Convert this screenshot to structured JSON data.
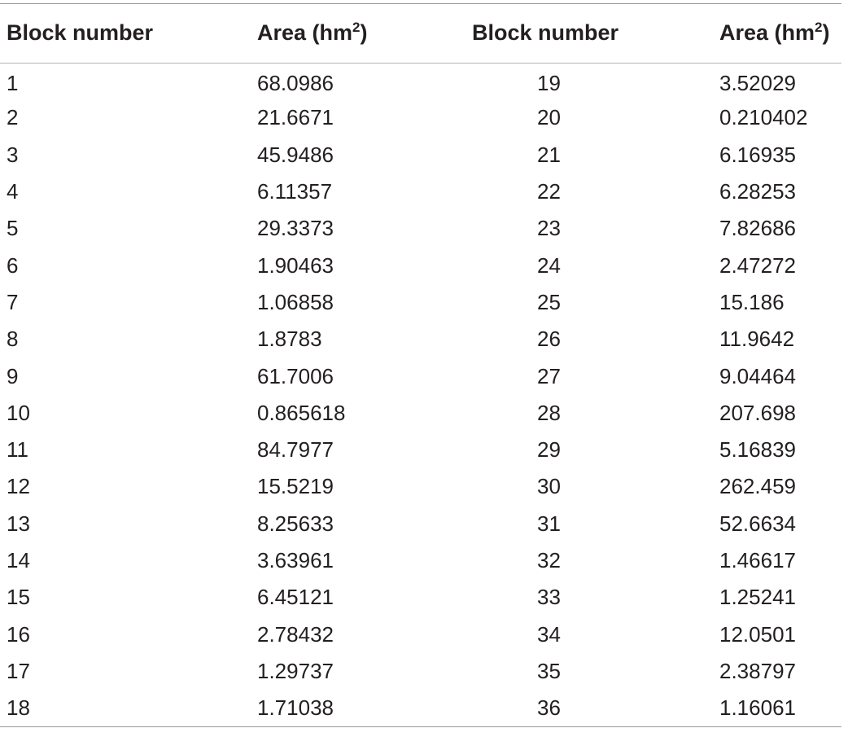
{
  "headers": {
    "block_number_1": "Block number",
    "area_1_prefix": "Area (hm",
    "area_1_sup": "2",
    "area_1_suffix": ")",
    "block_number_2": "Block number",
    "area_2_prefix": "Area (hm",
    "area_2_sup": "2",
    "area_2_suffix": ")"
  },
  "rows": [
    {
      "block_a": "1",
      "area_a": "68.0986",
      "block_b": "19",
      "area_b": "3.52029"
    },
    {
      "block_a": "2",
      "area_a": "21.6671",
      "block_b": "20",
      "area_b": "0.210402"
    },
    {
      "block_a": "3",
      "area_a": "45.9486",
      "block_b": "21",
      "area_b": "6.16935"
    },
    {
      "block_a": "4",
      "area_a": "6.11357",
      "block_b": "22",
      "area_b": "6.28253"
    },
    {
      "block_a": "5",
      "area_a": "29.3373",
      "block_b": "23",
      "area_b": "7.82686"
    },
    {
      "block_a": "6",
      "area_a": "1.90463",
      "block_b": "24",
      "area_b": "2.47272"
    },
    {
      "block_a": "7",
      "area_a": "1.06858",
      "block_b": "25",
      "area_b": "15.186"
    },
    {
      "block_a": "8",
      "area_a": "1.8783",
      "block_b": "26",
      "area_b": "11.9642"
    },
    {
      "block_a": "9",
      "area_a": "61.7006",
      "block_b": "27",
      "area_b": "9.04464"
    },
    {
      "block_a": "10",
      "area_a": "0.865618",
      "block_b": "28",
      "area_b": "207.698"
    },
    {
      "block_a": "11",
      "area_a": "84.7977",
      "block_b": "29",
      "area_b": "5.16839"
    },
    {
      "block_a": "12",
      "area_a": "15.5219",
      "block_b": "30",
      "area_b": "262.459"
    },
    {
      "block_a": "13",
      "area_a": "8.25633",
      "block_b": "31",
      "area_b": "52.6634"
    },
    {
      "block_a": "14",
      "area_a": "3.63961",
      "block_b": "32",
      "area_b": "1.46617"
    },
    {
      "block_a": "15",
      "area_a": "6.45121",
      "block_b": "33",
      "area_b": "1.25241"
    },
    {
      "block_a": "16",
      "area_a": "2.78432",
      "block_b": "34",
      "area_b": "12.0501"
    },
    {
      "block_a": "17",
      "area_a": "1.29737",
      "block_b": "35",
      "area_b": "2.38797"
    },
    {
      "block_a": "18",
      "area_a": "1.71038",
      "block_b": "36",
      "area_b": "1.16061"
    }
  ]
}
